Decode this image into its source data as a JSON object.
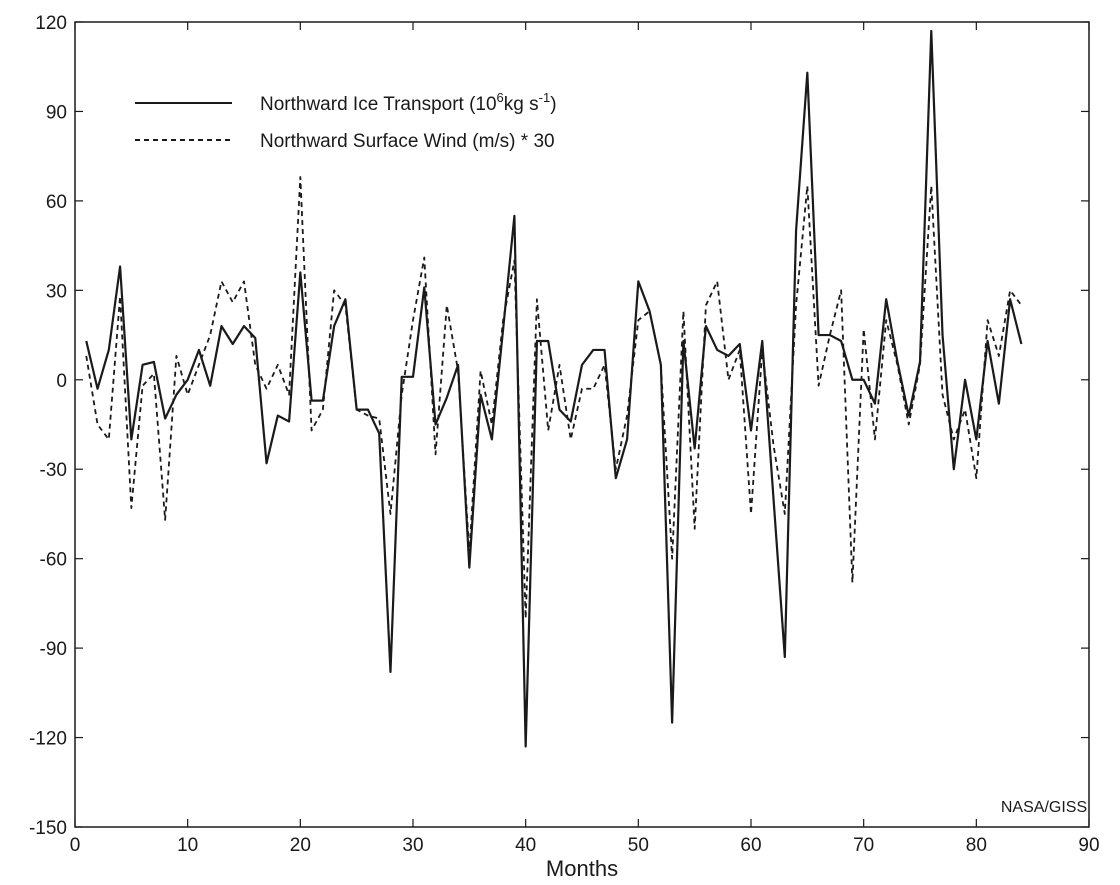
{
  "chart_data": {
    "type": "line",
    "title": "",
    "xlabel": "Months",
    "ylabel": "",
    "xlim": [
      0,
      90
    ],
    "ylim": [
      -150,
      120
    ],
    "xticks": [
      0,
      10,
      20,
      30,
      40,
      50,
      60,
      70,
      80,
      90
    ],
    "yticks": [
      -150,
      -120,
      -90,
      -60,
      -30,
      0,
      30,
      60,
      90,
      120
    ],
    "grid": false,
    "legend_position": "top-left",
    "credit": "NASA/GISS",
    "series": [
      {
        "name": "Northward Ice Transport (10⁶kg s⁻¹)",
        "legend_main": "Northward Ice Transport (10",
        "legend_sup1": "6",
        "legend_mid": "kg s",
        "legend_sup2": "-1",
        "legend_end": ")",
        "style": "solid",
        "color": "#1a1a1a",
        "x": [
          1,
          2,
          3,
          4,
          5,
          6,
          7,
          8,
          9,
          10,
          11,
          12,
          13,
          14,
          15,
          16,
          17,
          18,
          19,
          20,
          21,
          22,
          23,
          24,
          25,
          26,
          27,
          28,
          29,
          30,
          31,
          32,
          33,
          34,
          35,
          36,
          37,
          38,
          39,
          40,
          41,
          42,
          43,
          44,
          45,
          46,
          47,
          48,
          49,
          50,
          51,
          52,
          53,
          54,
          55,
          56,
          57,
          58,
          59,
          60,
          61,
          62,
          63,
          64,
          65,
          66,
          67,
          68,
          69,
          70,
          71,
          72,
          73,
          74,
          75,
          76,
          77,
          78,
          79,
          80,
          81,
          82,
          83,
          84
        ],
        "values": [
          13,
          -3,
          10,
          38,
          -20,
          5,
          6,
          -13,
          -5,
          0,
          10,
          -2,
          18,
          12,
          18,
          14,
          -28,
          -12,
          -14,
          36,
          -7,
          -7,
          18,
          27,
          -10,
          -10,
          -18,
          -98,
          1,
          1,
          31,
          -15,
          -6,
          5,
          -63,
          -5,
          -20,
          17,
          55,
          -123,
          13,
          13,
          -10,
          -14,
          5,
          10,
          10,
          -33,
          -20,
          33,
          23,
          5,
          -115,
          13,
          -23,
          18,
          10,
          8,
          12,
          -17,
          13,
          -40,
          -93,
          50,
          103,
          15,
          15,
          13,
          0,
          0,
          -8,
          27,
          6,
          -12,
          6,
          117,
          15,
          -30,
          0,
          -20,
          13,
          -8,
          27,
          12
        ]
      },
      {
        "name": "Northward Surface Wind (m/s) * 30",
        "style": "dashed",
        "color": "#1a1a1a",
        "x": [
          1,
          2,
          3,
          4,
          5,
          6,
          7,
          8,
          9,
          10,
          11,
          12,
          13,
          14,
          15,
          16,
          17,
          18,
          19,
          20,
          21,
          22,
          23,
          24,
          25,
          26,
          27,
          28,
          29,
          30,
          31,
          32,
          33,
          34,
          35,
          36,
          37,
          38,
          39,
          40,
          41,
          42,
          43,
          44,
          45,
          46,
          47,
          48,
          49,
          50,
          51,
          52,
          53,
          54,
          55,
          56,
          57,
          58,
          59,
          60,
          61,
          62,
          63,
          64,
          65,
          66,
          67,
          68,
          69,
          70,
          71,
          72,
          73,
          74,
          75,
          76,
          77,
          78,
          79,
          80,
          81,
          82,
          83,
          84
        ],
        "values": [
          8,
          -15,
          -20,
          28,
          -43,
          -2,
          2,
          -47,
          8,
          -5,
          5,
          15,
          33,
          26,
          33,
          5,
          -3,
          5,
          -5,
          68,
          -17,
          -10,
          30,
          25,
          -10,
          -12,
          -13,
          -45,
          -5,
          20,
          41,
          -25,
          25,
          3,
          -58,
          3,
          -15,
          20,
          40,
          -80,
          27,
          -17,
          5,
          -20,
          -3,
          -3,
          5,
          -30,
          -12,
          20,
          23,
          5,
          -60,
          23,
          -50,
          25,
          33,
          0,
          10,
          -45,
          10,
          -22,
          -45,
          25,
          65,
          -2,
          15,
          30,
          -68,
          17,
          -20,
          20,
          5,
          -15,
          5,
          65,
          -5,
          -20,
          -10,
          -33,
          20,
          8,
          30,
          25
        ]
      }
    ]
  }
}
